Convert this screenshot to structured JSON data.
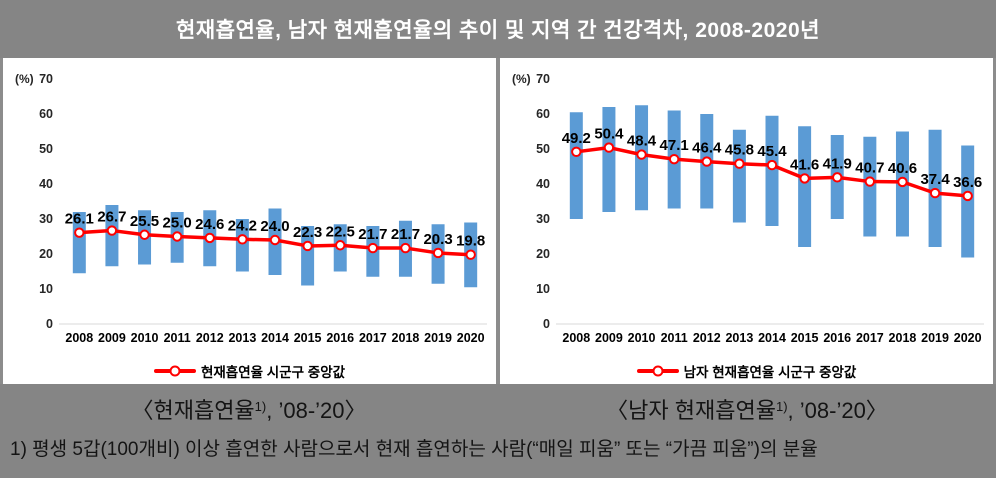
{
  "header": {
    "title": "현재흡연율, 남자 현재흡연율의 추이 및 지역 간 건강격차, 2008-2020년"
  },
  "chart_data": [
    {
      "type": "bar",
      "variant": "floating range bars (regional min–max) with median line",
      "title": "현재흡연율",
      "unit_label": "(%)",
      "categories": [
        "2008",
        "2009",
        "2010",
        "2011",
        "2012",
        "2013",
        "2014",
        "2015",
        "2016",
        "2017",
        "2018",
        "2019",
        "2020"
      ],
      "median": [
        26.1,
        26.7,
        25.5,
        25.0,
        24.6,
        24.2,
        24.0,
        22.3,
        22.5,
        21.7,
        21.7,
        20.3,
        19.8
      ],
      "range_min": [
        14.5,
        16.5,
        17.0,
        17.5,
        16.5,
        15.0,
        14.0,
        11.0,
        15.0,
        13.5,
        13.5,
        11.5,
        10.5
      ],
      "range_max": [
        32.0,
        34.0,
        32.5,
        32.0,
        32.5,
        30.0,
        33.0,
        28.0,
        28.5,
        28.0,
        29.5,
        28.5,
        29.0
      ],
      "legend": "현재흡연율 시군구 중앙값",
      "ylim": [
        0,
        70
      ],
      "yticks": [
        0,
        10,
        20,
        30,
        40,
        50,
        60,
        70
      ],
      "grid": false,
      "legend_position": "bottom",
      "bar_color": "#5B9BD5",
      "line_color": "#FF0000"
    },
    {
      "type": "bar",
      "variant": "floating range bars (regional min–max) with median line",
      "title": "남자 현재흡연율",
      "unit_label": "(%)",
      "categories": [
        "2008",
        "2009",
        "2010",
        "2011",
        "2012",
        "2013",
        "2014",
        "2015",
        "2016",
        "2017",
        "2018",
        "2019",
        "2020"
      ],
      "median": [
        49.2,
        50.4,
        48.4,
        47.1,
        46.4,
        45.8,
        45.4,
        41.6,
        41.9,
        40.7,
        40.6,
        37.4,
        36.6
      ],
      "range_min": [
        30.0,
        32.0,
        32.5,
        33.0,
        33.0,
        29.0,
        28.0,
        22.0,
        30.0,
        25.0,
        25.0,
        22.0,
        19.0
      ],
      "range_max": [
        60.5,
        62.0,
        62.5,
        61.0,
        60.0,
        55.5,
        59.5,
        56.5,
        54.0,
        53.5,
        55.0,
        55.5,
        51.0
      ],
      "legend": "남자 현재흡연율 시군구 중앙값",
      "ylim": [
        0,
        70
      ],
      "yticks": [
        0,
        10,
        20,
        30,
        40,
        50,
        60,
        70
      ],
      "grid": false,
      "legend_position": "bottom",
      "bar_color": "#5B9BD5",
      "line_color": "#FF0000"
    }
  ],
  "captions": [
    {
      "text": "〈현재흡연율",
      "sup": "1)",
      "suffix": ", ’08-’20〉"
    },
    {
      "text": "〈남자 현재흡연율",
      "sup": "1)",
      "suffix": ", ’08-’20〉"
    }
  ],
  "footnote": "1) 평생 5갑(100개비)  이상 흡연한 사람으로서 현재 흡연하는 사람(“매일 피움” 또는 “가끔 피움”)의 분율",
  "colors": {
    "band_gray": "#858585",
    "bar_blue": "#5B9BD5",
    "line_red": "#FF0000",
    "axis_gray": "#d9d9d9"
  }
}
